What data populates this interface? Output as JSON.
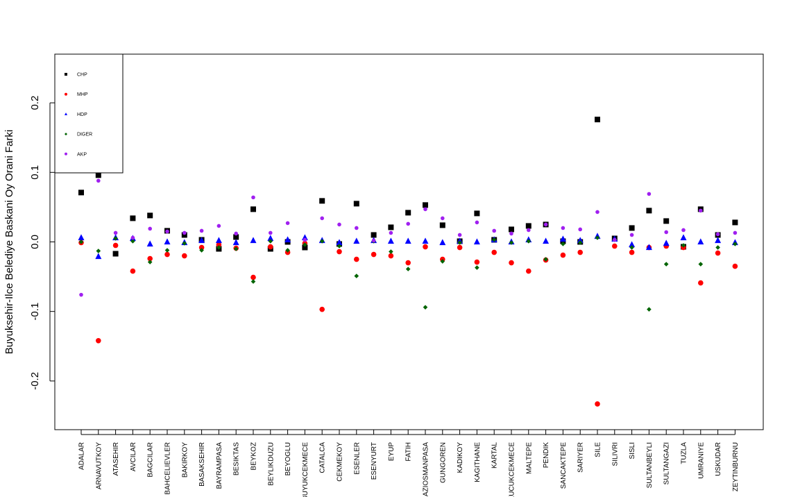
{
  "chart_data": {
    "type": "scatter",
    "title": "",
    "xlabel": "",
    "ylabel": "Buyuksehir-Ilce Belediye Baskani Oy Orani Farki",
    "ylim": [
      -0.27,
      0.27
    ],
    "yticks": [
      -0.2,
      -0.1,
      0.0,
      0.1,
      0.2
    ],
    "ytick_labels": [
      "-0.2",
      "-0.1",
      "0.0",
      "0.1",
      "0.2"
    ],
    "grid": false,
    "legend_position": "top-left",
    "categories": [
      "ADALAR",
      "ARNAVUTKOY",
      "ATASEHIR",
      "AVCILAR",
      "BAGCILAR",
      "BAHCELIEVLER",
      "BAKIRKOY",
      "BASAKSEHIR",
      "BAYRAMPASA",
      "BESIKTAS",
      "BEYKOZ",
      "BEYLIKDUZU",
      "BEYOGLU",
      "BUYUKCEKMECE",
      "CATALCA",
      "CEKMEKOY",
      "ESENLER",
      "ESENYURT",
      "EYUP",
      "FATIH",
      "GAZIOSMANPASA",
      "GUNGOREN",
      "KADIKOY",
      "KAGITHANE",
      "KARTAL",
      "KUCUKCEKMECE",
      "MALTEPE",
      "PENDIK",
      "SANCAKTEPE",
      "SARIYER",
      "SILE",
      "SILIVRI",
      "SISLI",
      "SULTANBEYLI",
      "SULTANGAZI",
      "TUZLA",
      "UMRANIYE",
      "USKUDAR",
      "ZEYTINBURNU"
    ],
    "series": [
      {
        "name": "CHP",
        "color": "#000000",
        "marker": "square",
        "values": [
          0.071,
          0.096,
          -0.017,
          0.034,
          0.038,
          0.016,
          0.01,
          0.003,
          -0.01,
          0.007,
          0.047,
          -0.01,
          0.0,
          -0.008,
          0.059,
          -0.003,
          0.055,
          0.01,
          0.021,
          0.042,
          0.053,
          0.024,
          0.001,
          0.041,
          0.003,
          0.018,
          0.023,
          0.025,
          0.001,
          0.0,
          0.176,
          0.005,
          0.02,
          0.045,
          0.03,
          -0.007,
          0.047,
          0.01,
          0.028
        ]
      },
      {
        "name": "MHP",
        "color": "#ff0000",
        "marker": "circle",
        "values": [
          -0.001,
          -0.142,
          -0.005,
          -0.042,
          -0.024,
          -0.018,
          -0.02,
          -0.008,
          -0.004,
          -0.009,
          -0.051,
          -0.007,
          -0.015,
          -0.002,
          -0.097,
          -0.014,
          -0.025,
          -0.018,
          -0.02,
          -0.03,
          -0.007,
          -0.025,
          -0.008,
          -0.029,
          -0.015,
          -0.03,
          -0.042,
          -0.026,
          -0.019,
          -0.015,
          -0.233,
          -0.006,
          -0.015,
          -0.008,
          -0.006,
          -0.008,
          -0.059,
          -0.016,
          -0.035
        ]
      },
      {
        "name": "HDP",
        "color": "#0000ff",
        "marker": "triangle",
        "values": [
          0.006,
          -0.021,
          0.006,
          0.005,
          -0.003,
          0.0,
          -0.001,
          0.002,
          0.002,
          -0.001,
          0.002,
          0.005,
          0.003,
          0.006,
          0.002,
          -0.001,
          0.001,
          0.002,
          0.001,
          0.001,
          0.001,
          -0.001,
          0.001,
          0.0,
          0.003,
          0.0,
          0.003,
          0.001,
          0.004,
          0.002,
          0.008,
          0.004,
          -0.004,
          -0.008,
          -0.002,
          0.006,
          0.0,
          0.002,
          -0.001
        ]
      },
      {
        "name": "DIGER",
        "color": "#006400",
        "marker": "diamond",
        "values": [
          0.0,
          -0.013,
          0.005,
          0.001,
          -0.029,
          -0.012,
          -0.002,
          -0.012,
          -0.008,
          -0.01,
          -0.057,
          0.001,
          -0.012,
          -0.004,
          0.001,
          -0.006,
          -0.049,
          0.001,
          -0.014,
          -0.039,
          -0.094,
          -0.028,
          -0.001,
          -0.037,
          0.003,
          -0.001,
          0.001,
          -0.025,
          -0.003,
          -0.001,
          0.006,
          0.003,
          -0.008,
          -0.097,
          -0.032,
          -0.005,
          -0.032,
          -0.008,
          -0.003
        ]
      },
      {
        "name": "AKP",
        "color": "#a020f0",
        "marker": "circle",
        "values": [
          -0.076,
          0.088,
          0.013,
          0.006,
          0.019,
          0.015,
          0.013,
          0.016,
          0.023,
          0.012,
          0.064,
          0.013,
          0.027,
          0.003,
          0.034,
          0.025,
          0.02,
          0.002,
          0.013,
          0.026,
          0.047,
          0.034,
          0.01,
          0.028,
          0.016,
          0.012,
          0.017,
          0.025,
          0.02,
          0.018,
          0.043,
          0.003,
          0.01,
          0.069,
          0.014,
          0.017,
          0.045,
          0.011,
          0.013
        ]
      }
    ]
  }
}
